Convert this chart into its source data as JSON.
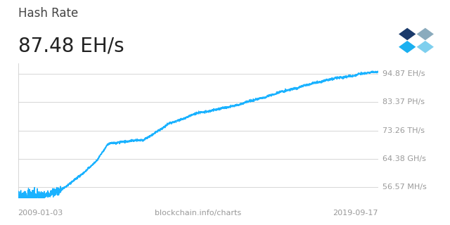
{
  "title_line1": "Hash Rate",
  "title_line2": "87.48 EH/s",
  "xlabel_left": "2009-01-03",
  "xlabel_center": "blockchain.info/charts",
  "xlabel_right": "2019-09-17",
  "y_tick_labels": [
    "56.57 MH/s",
    "64.38 GH/s",
    "73.26 TH/s",
    "83.37 PH/s",
    "94.87 EH/s"
  ],
  "y_tick_positions": [
    0.08,
    0.29,
    0.5,
    0.71,
    0.92
  ],
  "line_color": "#1ab2ff",
  "background_color": "#ffffff",
  "grid_color": "#d0d0d0",
  "text_color_title": "#444444",
  "text_color_subtitle": "#222222",
  "text_color_axis": "#999999",
  "title_fontsize": 12,
  "subtitle_fontsize": 20,
  "axis_label_fontsize": 8,
  "logo_colors_tl": "#1a3a6b",
  "logo_colors_tr": "#8aabbd",
  "logo_colors_bl": "#1ab0f0",
  "logo_colors_br": "#7ecfee"
}
